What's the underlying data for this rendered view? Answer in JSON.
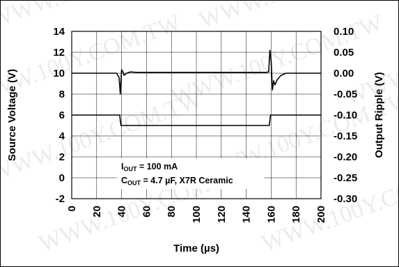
{
  "chart_data": {
    "type": "line",
    "xlabel": "Time (µs)",
    "ylabel_left": "Source Voltage (V)",
    "ylabel_right": "Output Ripple (V)",
    "xlim": [
      0,
      200
    ],
    "ylim_left": [
      -2,
      14
    ],
    "ylim_right": [
      -0.3,
      0.1
    ],
    "x_ticks": [
      "0",
      "20",
      "40",
      "60",
      "80",
      "100",
      "120",
      "140",
      "160",
      "180",
      "200"
    ],
    "y_left_ticks": [
      "14",
      "12",
      "10",
      "8",
      "6",
      "4",
      "2",
      "0",
      "-2"
    ],
    "y_right_ticks": [
      "0.10",
      "0.05",
      "0.00",
      "-0.05",
      "-0.10",
      "-0.15",
      "-0.20",
      "-0.25",
      "-0.30"
    ],
    "grid": true,
    "annotation": {
      "line1_main": "I",
      "line1_sub": "OUT",
      "line1_rest": " = 100 mA",
      "line2_main": "C",
      "line2_sub": "OUT",
      "line2_rest": " = 4.7 µF, X7R Ceramic"
    },
    "series": [
      {
        "axis": "left",
        "x": [
          0,
          38.5,
          39.5,
          158.5,
          159.5,
          200
        ],
        "values": [
          6.0,
          6.0,
          5.0,
          5.0,
          6.0,
          6.0
        ]
      },
      {
        "axis": "right",
        "x": [
          0,
          36,
          38,
          39,
          40,
          40.8,
          42,
          44,
          47,
          52,
          60,
          80,
          100,
          120,
          140,
          156,
          158,
          159,
          160,
          161,
          162,
          163,
          165,
          168,
          172,
          180,
          200
        ],
        "values": [
          0.0,
          0.0,
          -0.01,
          -0.05,
          0.008,
          0.005,
          -0.005,
          0.0,
          0.003,
          0.002,
          0.002,
          0.002,
          0.002,
          0.002,
          0.002,
          0.002,
          0.003,
          0.055,
          0.03,
          -0.04,
          -0.018,
          -0.028,
          -0.015,
          -0.005,
          0.0,
          0.0,
          0.0
        ]
      }
    ]
  },
  "watermark": "WWW.100Y.COM.TW"
}
